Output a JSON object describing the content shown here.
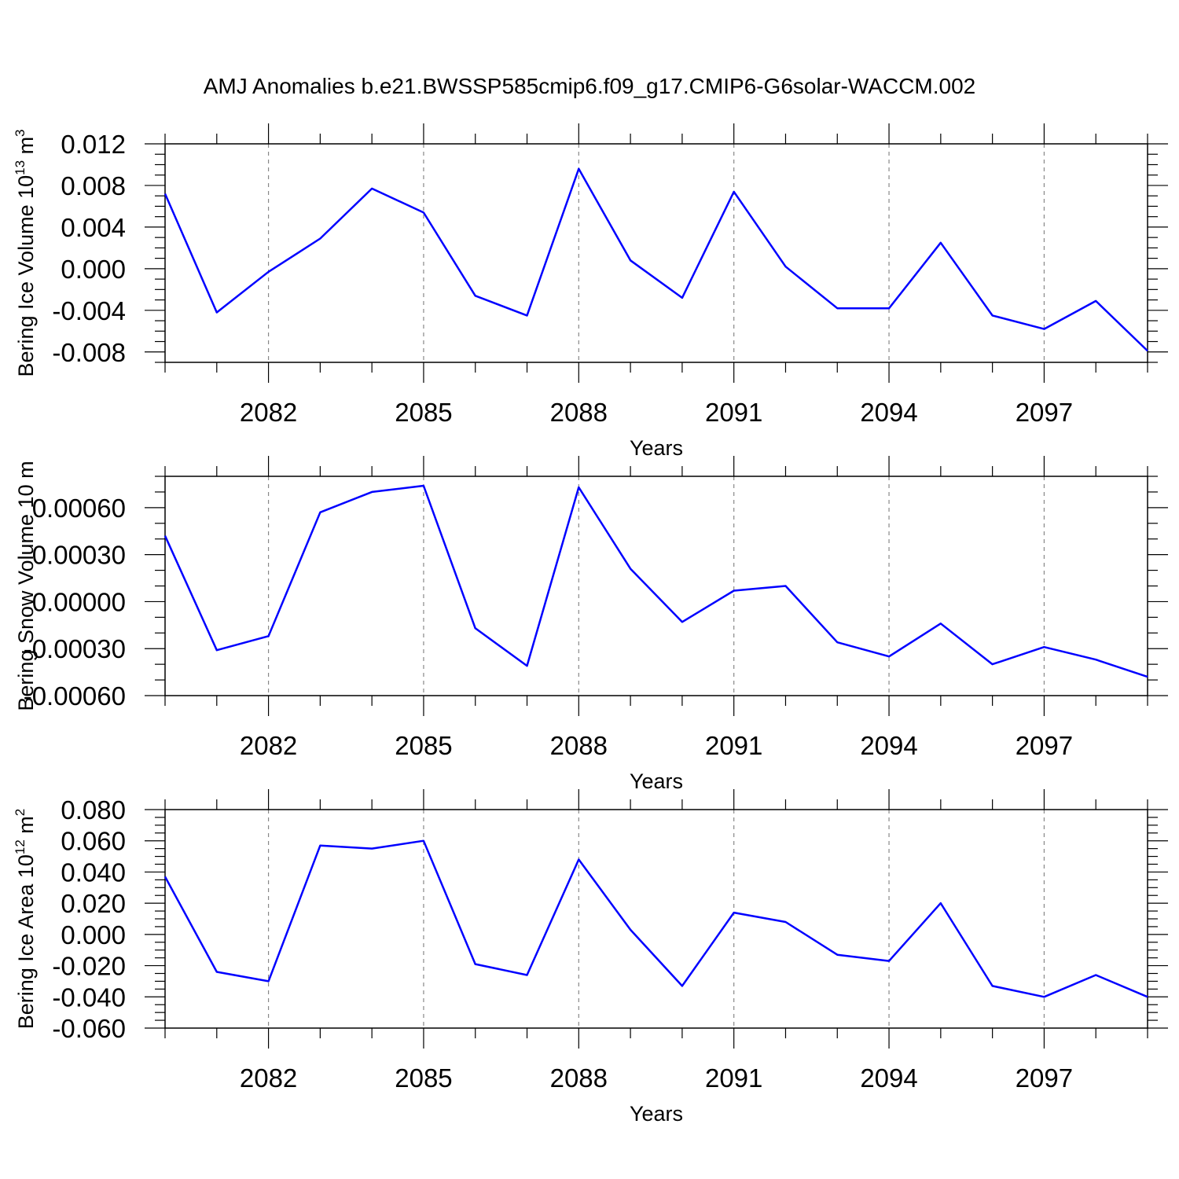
{
  "title": "AMJ Anomalies b.e21.BWSSP585cmip6.f09_g17.CMIP6-G6solar-WACCM.002",
  "colors": {
    "line": "#0000ff",
    "grid": "#888888",
    "axis": "#000000"
  },
  "chart_data": [
    {
      "type": "line",
      "title": "",
      "xlabel": "Years",
      "ylabel": {
        "text": "Bering Ice Volume 10",
        "sup1": "13",
        "mid": " m",
        "sup2": "3"
      },
      "x": [
        2080,
        2081,
        2082,
        2083,
        2084,
        2085,
        2086,
        2087,
        2088,
        2089,
        2090,
        2091,
        2092,
        2093,
        2094,
        2095,
        2096,
        2097,
        2098,
        2099
      ],
      "y": [
        0.0072,
        -0.0042,
        -0.0003,
        0.0029,
        0.0077,
        0.0054,
        -0.0026,
        -0.0045,
        0.0096,
        0.0008,
        -0.0028,
        0.0074,
        0.0002,
        -0.0038,
        -0.0038,
        0.0025,
        -0.0045,
        -0.0058,
        -0.0031,
        -0.0079
      ],
      "xlim": [
        2080,
        2099
      ],
      "ylim": [
        -0.009,
        0.012
      ],
      "xticks": [
        2082,
        2085,
        2088,
        2091,
        2094,
        2097
      ],
      "xtick_labels": [
        "2082",
        "2085",
        "2088",
        "2091",
        "2094",
        "2097"
      ],
      "yticks": [
        -0.008,
        -0.004,
        0.0,
        0.004,
        0.008,
        0.012
      ],
      "ytick_labels": [
        "-0.008",
        "-0.004",
        "0.000",
        "0.004",
        "0.008",
        "0.012"
      ],
      "yminor_step": 0.001,
      "grid": "vertical-dashed"
    },
    {
      "type": "line",
      "title": "",
      "xlabel": "Years",
      "ylabel": {
        "text": "Bering Snow Volume 10",
        "sup1": "",
        "mid": " m",
        "sup2": ""
      },
      "x": [
        2080,
        2081,
        2082,
        2083,
        2084,
        2085,
        2086,
        2087,
        2088,
        2089,
        2090,
        2091,
        2092,
        2093,
        2094,
        2095,
        2096,
        2097,
        2098,
        2099
      ],
      "y": [
        0.00042,
        -0.00031,
        -0.00022,
        0.00057,
        0.0007,
        0.00074,
        -0.00017,
        -0.00041,
        0.00073,
        0.00021,
        -0.00013,
        7e-05,
        0.0001,
        -0.00026,
        -0.00035,
        -0.00014,
        -0.0004,
        -0.00029,
        -0.00037,
        -0.00048
      ],
      "xlim": [
        2080,
        2099
      ],
      "ylim": [
        -0.0006,
        0.0008
      ],
      "xticks": [
        2082,
        2085,
        2088,
        2091,
        2094,
        2097
      ],
      "xtick_labels": [
        "2082",
        "2085",
        "2088",
        "2091",
        "2094",
        "2097"
      ],
      "yticks": [
        -0.0006,
        -0.0003,
        0.0,
        0.0003,
        0.0006
      ],
      "ytick_labels": [
        "-0.00060",
        "-0.00030",
        "0.00000",
        "0.00030",
        "0.00060"
      ],
      "yminor_step": 0.0001,
      "grid": "vertical-dashed"
    },
    {
      "type": "line",
      "title": "",
      "xlabel": "Years",
      "ylabel": {
        "text": "Bering Ice Area 10",
        "sup1": "12",
        "mid": " m",
        "sup2": "2"
      },
      "x": [
        2080,
        2081,
        2082,
        2083,
        2084,
        2085,
        2086,
        2087,
        2088,
        2089,
        2090,
        2091,
        2092,
        2093,
        2094,
        2095,
        2096,
        2097,
        2098,
        2099
      ],
      "y": [
        0.037,
        -0.024,
        -0.03,
        0.057,
        0.055,
        0.06,
        -0.019,
        -0.026,
        0.048,
        0.003,
        -0.033,
        0.014,
        0.008,
        -0.013,
        -0.017,
        0.02,
        -0.033,
        -0.04,
        -0.026,
        -0.04
      ],
      "xlim": [
        2080,
        2099
      ],
      "ylim": [
        -0.06,
        0.08
      ],
      "xticks": [
        2082,
        2085,
        2088,
        2091,
        2094,
        2097
      ],
      "xtick_labels": [
        "2082",
        "2085",
        "2088",
        "2091",
        "2094",
        "2097"
      ],
      "yticks": [
        -0.06,
        -0.04,
        -0.02,
        0.0,
        0.02,
        0.04,
        0.06,
        0.08
      ],
      "ytick_labels": [
        "-0.060",
        "-0.040",
        "-0.020",
        "0.000",
        "0.020",
        "0.040",
        "0.060",
        "0.080"
      ],
      "yminor_step": 0.005,
      "grid": "vertical-dashed"
    }
  ]
}
